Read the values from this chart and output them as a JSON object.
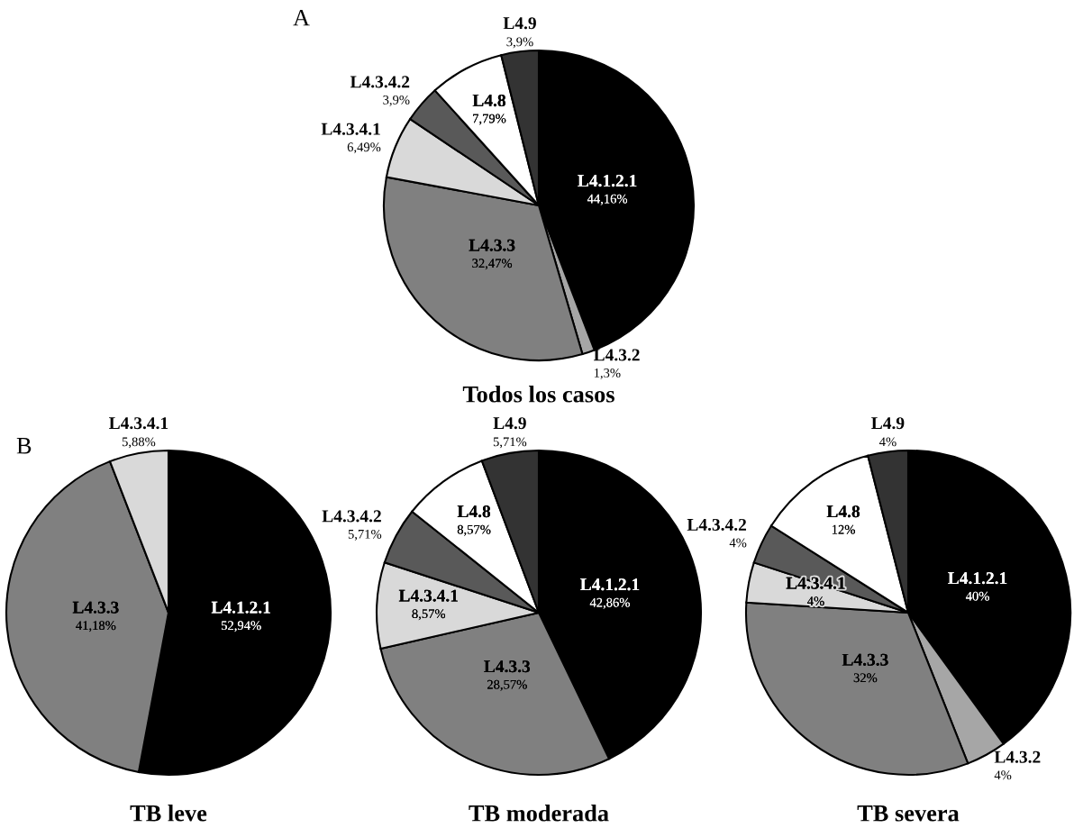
{
  "chart_data": [
    {
      "type": "pie",
      "title": "Todos los casos",
      "annotations": [
        "A"
      ],
      "categories": [
        "L4.1.2.1",
        "L4.3.2",
        "L4.3.3",
        "L4.3.4.1",
        "L4.3.4.2",
        "L4.8",
        "L4.9"
      ],
      "values": [
        44.16,
        1.3,
        32.47,
        6.49,
        3.9,
        7.79,
        3.9
      ],
      "value_labels": [
        "44,16%",
        "1,3%",
        "32,47%",
        "6,49%",
        "3,9%",
        "7,79%",
        "3,9%"
      ],
      "colors": [
        "#000000",
        "#a6a6a6",
        "#808080",
        "#d9d9d9",
        "#595959",
        "#ffffff",
        "#333333"
      ]
    },
    {
      "type": "pie",
      "title": "TB leve",
      "annotations": [
        "B"
      ],
      "categories": [
        "L4.1.2.1",
        "L4.3.3",
        "L4.3.4.1"
      ],
      "values": [
        52.94,
        41.18,
        5.88
      ],
      "value_labels": [
        "52,94%",
        "41,18%",
        "5,88%"
      ],
      "colors": [
        "#000000",
        "#808080",
        "#d9d9d9"
      ]
    },
    {
      "type": "pie",
      "title": "TB moderada",
      "categories": [
        "L4.1.2.1",
        "L4.3.3",
        "L4.3.4.1",
        "L4.3.4.2",
        "L4.8",
        "L4.9"
      ],
      "values": [
        42.86,
        28.57,
        8.57,
        5.71,
        8.57,
        5.71
      ],
      "value_labels": [
        "42,86%",
        "28,57%",
        "8,57%",
        "5,71%",
        "8,57%",
        "5,71%"
      ],
      "colors": [
        "#000000",
        "#808080",
        "#d9d9d9",
        "#595959",
        "#ffffff",
        "#333333"
      ]
    },
    {
      "type": "pie",
      "title": "TB severa",
      "categories": [
        "L4.1.2.1",
        "L4.3.2",
        "L4.3.3",
        "L4.3.4.1",
        "L4.3.4.2",
        "L4.8",
        "L4.9"
      ],
      "values": [
        40,
        4,
        32,
        4,
        4,
        12,
        4
      ],
      "value_labels": [
        "40%",
        "4%",
        "32%",
        "4%",
        "4%",
        "12%",
        "4%"
      ],
      "colors": [
        "#000000",
        "#a6a6a6",
        "#808080",
        "#d9d9d9",
        "#595959",
        "#ffffff",
        "#333333"
      ]
    }
  ]
}
